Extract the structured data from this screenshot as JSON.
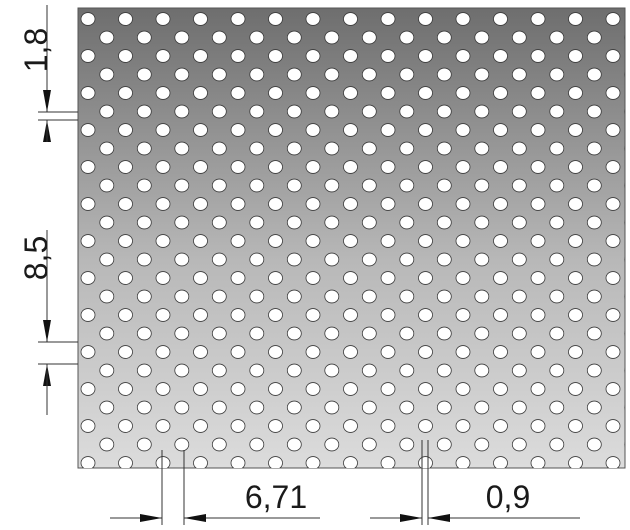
{
  "drawing": {
    "type": "perforated-sheet-drawing",
    "hole_pattern": "staggered round holes",
    "dimensions": {
      "left_top": "1,8",
      "left_middle": "8,5",
      "bottom_left": "6,71",
      "bottom_right": "0,9"
    },
    "colors": {
      "sheet_dark": "#6e6e6e",
      "sheet_light": "#dcdcdc",
      "hole_fill": "#ffffff",
      "line": "#333333",
      "text": "#1a1a1a"
    }
  }
}
